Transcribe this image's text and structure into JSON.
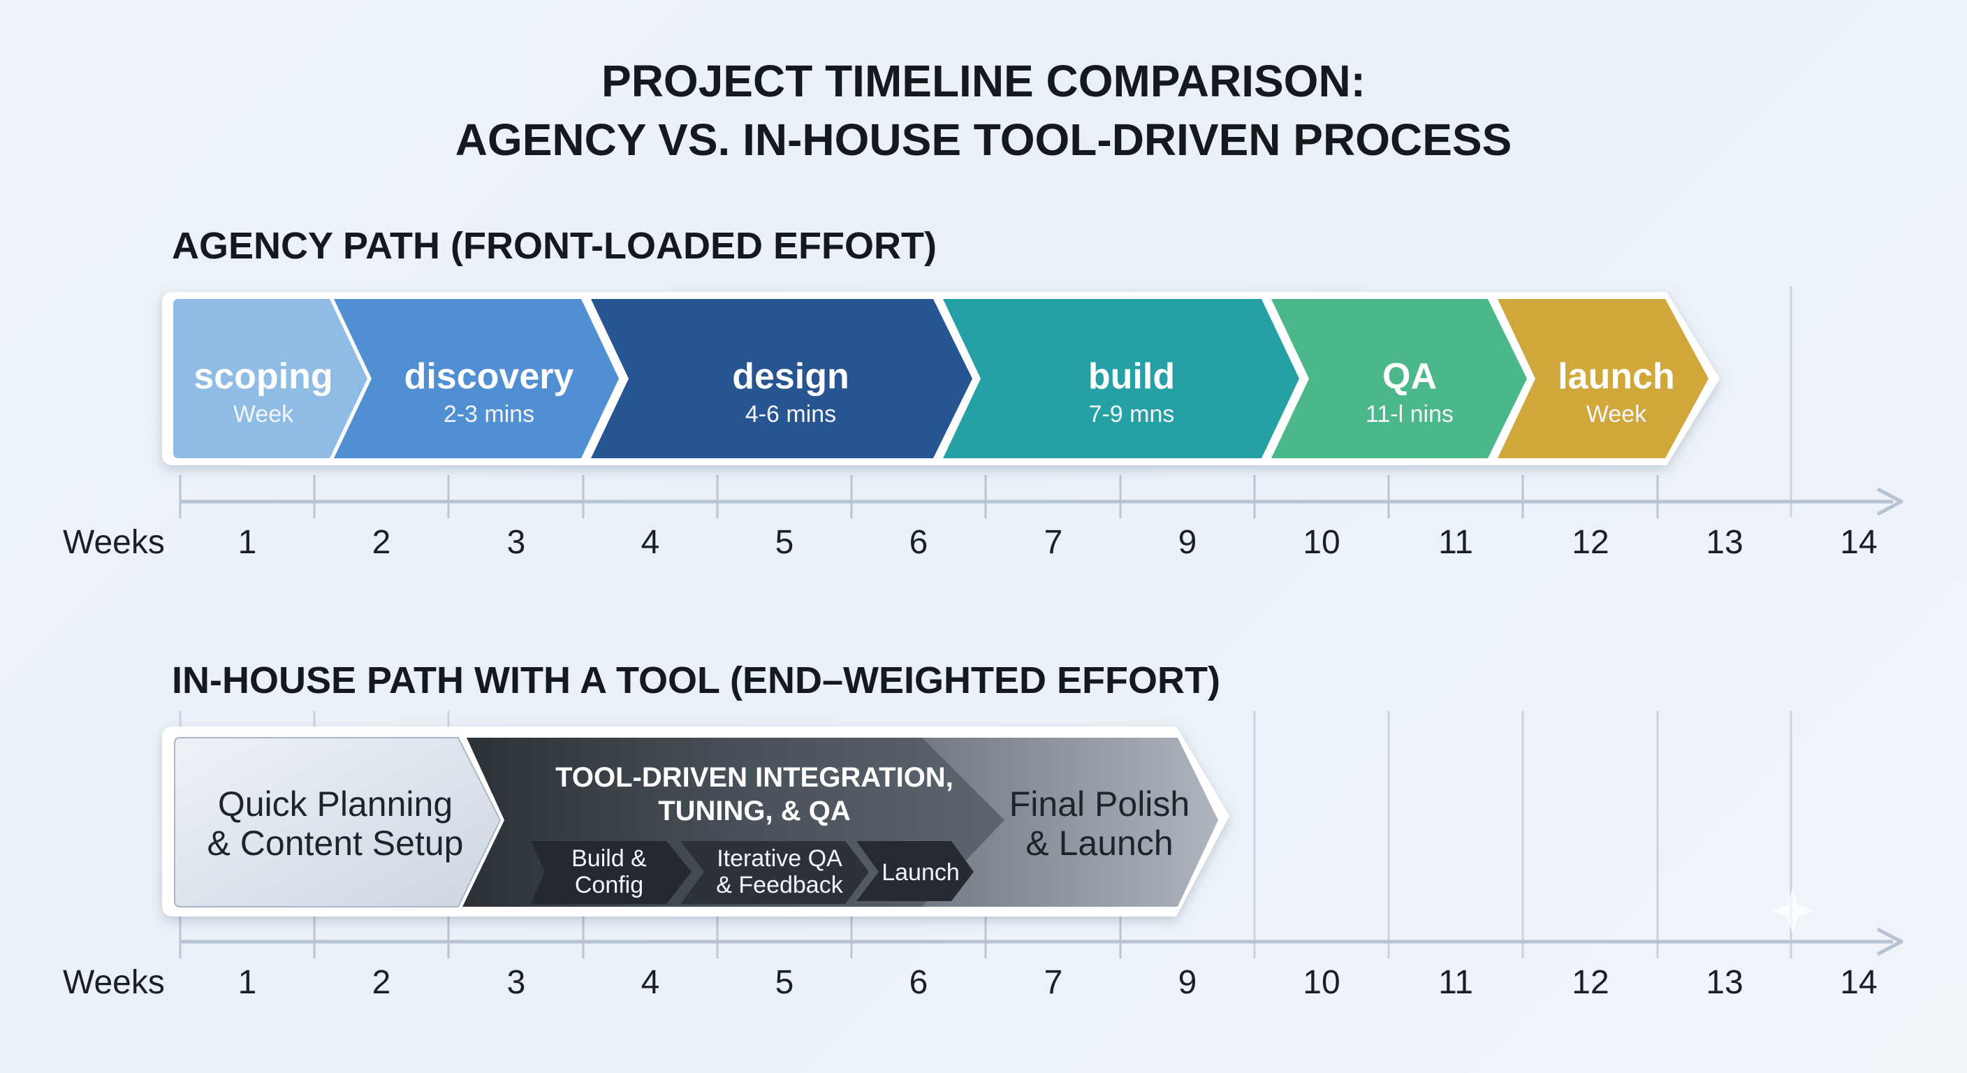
{
  "title": {
    "line1": "PROJECT TIMELINE COMPARISON:",
    "line2": "AGENCY VS. IN-HOUSE TOOL-DRIVEN PROCESS"
  },
  "agency": {
    "heading": "AGENCY PATH (FRONT-LOADED EFFORT)",
    "axis_label": "Weeks",
    "ticks": [
      "1",
      "2",
      "3",
      "4",
      "5",
      "6",
      "7",
      "9",
      "10",
      "11",
      "12",
      "13",
      "14"
    ],
    "phases": [
      {
        "name": "scoping",
        "sub": "Week",
        "color": "#8ebce5"
      },
      {
        "name": "discovery",
        "sub": "2-3 mins",
        "color": "#4f8fd2"
      },
      {
        "name": "design",
        "sub": "4-6 mins",
        "color": "#275592"
      },
      {
        "name": "build",
        "sub": "7-9 mns",
        "color": "#25a0a4"
      },
      {
        "name": "QA",
        "sub": "11-l nins",
        "color": "#4cb789"
      },
      {
        "name": "launch",
        "sub": "Week",
        "color": "#d0a73a"
      }
    ]
  },
  "inhouse": {
    "heading": "IN-HOUSE PATH WITH A TOOL (END–WEIGHTED EFFORT)",
    "axis_label": "Weeks",
    "ticks": [
      "1",
      "2",
      "3",
      "4",
      "5",
      "6",
      "7",
      "9",
      "10",
      "11",
      "12",
      "13",
      "14"
    ],
    "planning": {
      "line1": "Quick Planning",
      "line2": "& Content Setup"
    },
    "tool": {
      "line1": "TOOL-DRIVEN INTEGRATION,",
      "line2": "TUNING, & QA",
      "steps": [
        {
          "line1": "Build &",
          "line2": "Config"
        },
        {
          "line1": "Iterative QA",
          "line2": "& Feedback"
        },
        {
          "line1": "Launch",
          "line2": ""
        }
      ]
    },
    "final": {
      "line1": "Final Polish",
      "line2": "& Launch"
    }
  }
}
